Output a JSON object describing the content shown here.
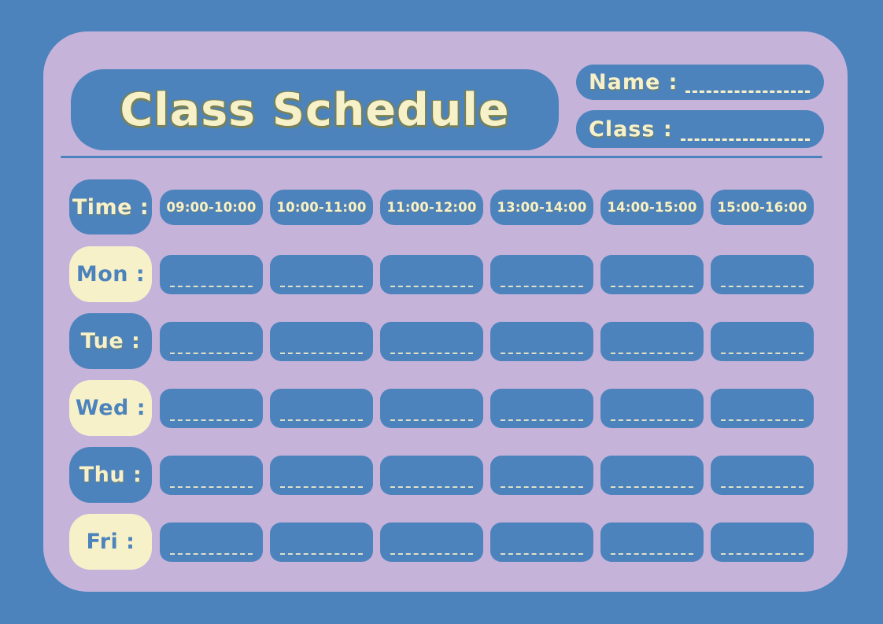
{
  "header": {
    "title": "Class Schedule",
    "name_label": "Name :",
    "class_label": "Class :"
  },
  "schedule": {
    "time_label": "Time :",
    "time_slots": [
      "09:00-10:00",
      "10:00-11:00",
      "11:00-12:00",
      "13:00-14:00",
      "14:00-15:00",
      "15:00-16:00"
    ],
    "days": [
      {
        "label": "Mon :",
        "variant": "cream"
      },
      {
        "label": "Tue :",
        "variant": "blue"
      },
      {
        "label": "Wed :",
        "variant": "cream"
      },
      {
        "label": "Thu :",
        "variant": "blue"
      },
      {
        "label": "Fri :",
        "variant": "cream"
      }
    ]
  },
  "colors": {
    "background_blue": "#4d83bc",
    "card_lavender": "#c5b3da",
    "text_cream": "#f7f1c9",
    "title_outline_olive": "#7d8049"
  }
}
